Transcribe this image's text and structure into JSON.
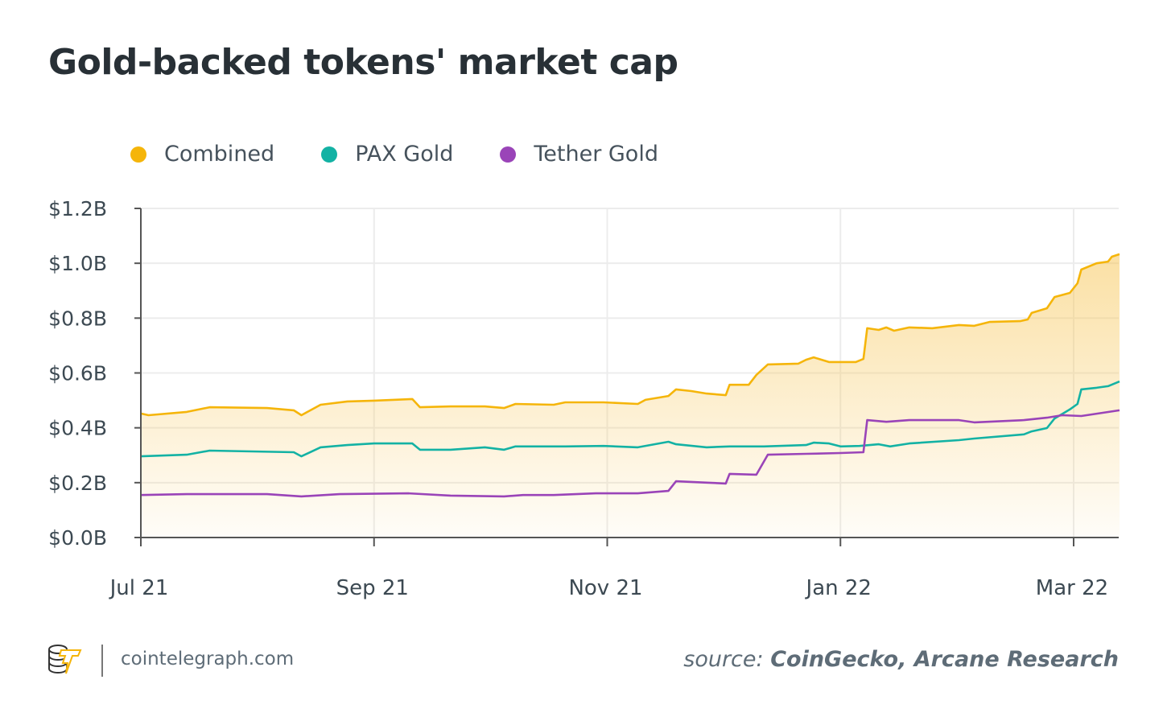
{
  "chart_data": {
    "type": "area",
    "title": "Gold-backed tokens' market cap",
    "xlabel": "",
    "ylabel": "",
    "x_unit": "days since 1 Jul 2021",
    "xlim": [
      0,
      256
    ],
    "ylim": [
      0,
      1.2
    ],
    "y_ticks": [
      {
        "value": 0,
        "label": "$0.0B"
      },
      {
        "value": 0.2,
        "label": "$0.2B"
      },
      {
        "value": 0.4,
        "label": "$0.4B"
      },
      {
        "value": 0.6,
        "label": "$0.6B"
      },
      {
        "value": 0.8,
        "label": "$0.8B"
      },
      {
        "value": 1.0,
        "label": "$1.0B"
      },
      {
        "value": 1.2,
        "label": "$1.2B"
      }
    ],
    "x_ticks": [
      {
        "value": 0,
        "label": "Jul 21"
      },
      {
        "value": 61,
        "label": "Sep 21"
      },
      {
        "value": 122,
        "label": "Nov 21"
      },
      {
        "value": 183,
        "label": "Jan 22"
      },
      {
        "value": 244,
        "label": "Mar 22"
      }
    ],
    "grid": true,
    "legend_position": "top-left",
    "series": [
      {
        "name": "Combined",
        "color": "#f5b50a",
        "fill": true,
        "points": [
          [
            0,
            0.452
          ],
          [
            2,
            0.446
          ],
          [
            12,
            0.458
          ],
          [
            18,
            0.475
          ],
          [
            33,
            0.472
          ],
          [
            40,
            0.464
          ],
          [
            42,
            0.446
          ],
          [
            47,
            0.484
          ],
          [
            54,
            0.496
          ],
          [
            61,
            0.499
          ],
          [
            71,
            0.505
          ],
          [
            73,
            0.475
          ],
          [
            81,
            0.478
          ],
          [
            90,
            0.478
          ],
          [
            95,
            0.472
          ],
          [
            98,
            0.487
          ],
          [
            108,
            0.484
          ],
          [
            111,
            0.493
          ],
          [
            121,
            0.493
          ],
          [
            130,
            0.487
          ],
          [
            132,
            0.502
          ],
          [
            138,
            0.516
          ],
          [
            140,
            0.54
          ],
          [
            144,
            0.534
          ],
          [
            148,
            0.525
          ],
          [
            153,
            0.519
          ],
          [
            154,
            0.557
          ],
          [
            159,
            0.557
          ],
          [
            161,
            0.593
          ],
          [
            164,
            0.631
          ],
          [
            172,
            0.634
          ],
          [
            174,
            0.648
          ],
          [
            176,
            0.657
          ],
          [
            180,
            0.64
          ],
          [
            183,
            0.64
          ],
          [
            187,
            0.64
          ],
          [
            189,
            0.651
          ],
          [
            190,
            0.763
          ],
          [
            193,
            0.757
          ],
          [
            195,
            0.766
          ],
          [
            197,
            0.754
          ],
          [
            201,
            0.766
          ],
          [
            207,
            0.763
          ],
          [
            214,
            0.775
          ],
          [
            218,
            0.772
          ],
          [
            222,
            0.786
          ],
          [
            230,
            0.789
          ],
          [
            232,
            0.795
          ],
          [
            233,
            0.819
          ],
          [
            237,
            0.836
          ],
          [
            239,
            0.877
          ],
          [
            243,
            0.892
          ],
          [
            245,
            0.927
          ],
          [
            246,
            0.977
          ],
          [
            250,
            1.0
          ],
          [
            253,
            1.006
          ],
          [
            254,
            1.024
          ],
          [
            256,
            1.033
          ]
        ]
      },
      {
        "name": "PAX Gold",
        "color": "#13b2a4",
        "fill": false,
        "points": [
          [
            0,
            0.296
          ],
          [
            12,
            0.302
          ],
          [
            18,
            0.317
          ],
          [
            40,
            0.311
          ],
          [
            42,
            0.296
          ],
          [
            47,
            0.329
          ],
          [
            54,
            0.337
          ],
          [
            61,
            0.343
          ],
          [
            71,
            0.343
          ],
          [
            73,
            0.32
          ],
          [
            81,
            0.32
          ],
          [
            90,
            0.329
          ],
          [
            95,
            0.32
          ],
          [
            98,
            0.332
          ],
          [
            111,
            0.332
          ],
          [
            121,
            0.334
          ],
          [
            130,
            0.329
          ],
          [
            138,
            0.349
          ],
          [
            140,
            0.34
          ],
          [
            148,
            0.329
          ],
          [
            154,
            0.332
          ],
          [
            163,
            0.332
          ],
          [
            174,
            0.337
          ],
          [
            176,
            0.346
          ],
          [
            180,
            0.343
          ],
          [
            183,
            0.332
          ],
          [
            188,
            0.334
          ],
          [
            193,
            0.34
          ],
          [
            196,
            0.332
          ],
          [
            201,
            0.343
          ],
          [
            214,
            0.355
          ],
          [
            218,
            0.361
          ],
          [
            231,
            0.376
          ],
          [
            233,
            0.387
          ],
          [
            237,
            0.399
          ],
          [
            239,
            0.434
          ],
          [
            243,
            0.467
          ],
          [
            245,
            0.487
          ],
          [
            246,
            0.54
          ],
          [
            250,
            0.546
          ],
          [
            253,
            0.552
          ],
          [
            256,
            0.569
          ]
        ]
      },
      {
        "name": "Tether Gold",
        "color": "#9a44b8",
        "fill": false,
        "points": [
          [
            0,
            0.155
          ],
          [
            12,
            0.158
          ],
          [
            33,
            0.158
          ],
          [
            42,
            0.15
          ],
          [
            52,
            0.158
          ],
          [
            70,
            0.161
          ],
          [
            81,
            0.153
          ],
          [
            95,
            0.15
          ],
          [
            100,
            0.155
          ],
          [
            108,
            0.155
          ],
          [
            119,
            0.161
          ],
          [
            130,
            0.161
          ],
          [
            138,
            0.17
          ],
          [
            140,
            0.205
          ],
          [
            148,
            0.2
          ],
          [
            153,
            0.197
          ],
          [
            154,
            0.232
          ],
          [
            161,
            0.229
          ],
          [
            164,
            0.302
          ],
          [
            174,
            0.305
          ],
          [
            183,
            0.308
          ],
          [
            189,
            0.311
          ],
          [
            190,
            0.428
          ],
          [
            195,
            0.422
          ],
          [
            201,
            0.428
          ],
          [
            214,
            0.428
          ],
          [
            218,
            0.42
          ],
          [
            231,
            0.428
          ],
          [
            237,
            0.437
          ],
          [
            241,
            0.446
          ],
          [
            246,
            0.443
          ],
          [
            256,
            0.464
          ]
        ]
      }
    ]
  },
  "footer": {
    "site": "cointelegraph.com",
    "source_prefix": "source:",
    "source_names": "CoinGecko, Arcane Research"
  }
}
